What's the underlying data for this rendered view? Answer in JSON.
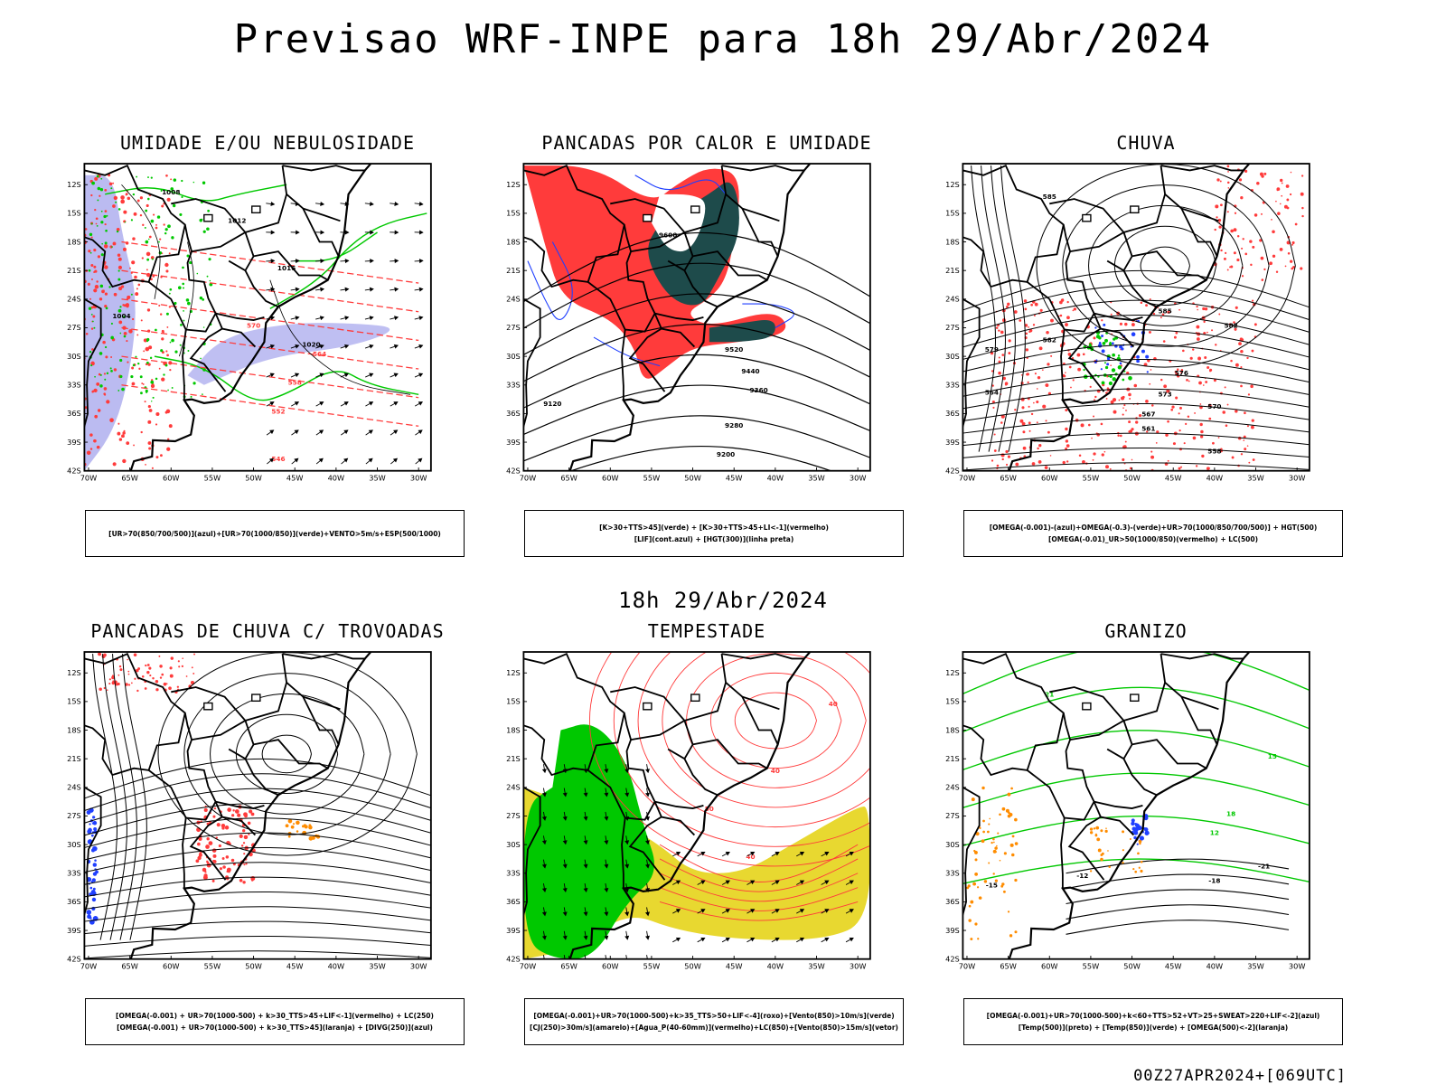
{
  "title": "Previsao WRF-INPE  para 18h 29/Abr/2024",
  "middle_title": "18h 29/Abr/2024",
  "footer": "00Z27APR2024+[069UTC]",
  "axes": {
    "lat_labels": [
      "12S",
      "15S",
      "18S",
      "21S",
      "24S",
      "27S",
      "30S",
      "33S",
      "36S",
      "39S",
      "42S"
    ],
    "lon_labels": [
      "70W",
      "65W",
      "60W",
      "55W",
      "50W",
      "45W",
      "40W",
      "35W",
      "30W"
    ]
  },
  "colors": {
    "red": "#ff3b3b",
    "green": "#00c800",
    "blue": "#1f3fff",
    "lavender": "#b4b4f0",
    "darkteal": "#1e4b4b",
    "yellow": "#e8d830",
    "orange": "#ff8c00",
    "black": "#000000"
  },
  "panels": [
    {
      "title": "UMIDADE E/OU NEBULOSIDADE",
      "legend_lines": [
        "[UR>70(850/700/500)](azul)+[UR>70(1000/850)](verde)+VENTO>5m/s+ESP(500/1000)"
      ],
      "contour_labels": [
        "1008",
        "1012",
        "1016",
        "1004",
        "1020",
        "570",
        "564",
        "558",
        "552",
        "546"
      ]
    },
    {
      "title": "PANCADAS POR CALOR E UMIDADE",
      "legend_lines": [
        "[K>30+TTS>45](verde) + [K>30+TTS>45+LI<-1](vermelho)",
        "[LIF](cont.azul) + [HGT(300)](linha preta)"
      ],
      "contour_labels": [
        "9600",
        "9520",
        "9440",
        "9360",
        "9280",
        "9200",
        "9120"
      ]
    },
    {
      "title": "CHUVA",
      "legend_lines": [
        "[OMEGA(-0.001)-(azul)+OMEGA(-0.3)-(verde)+UR>70(1000/850/700/500)] + HGT(500)",
        "[OMEGA(-0.01)_UR>50(1000/850)(vermelho) + LC(500)"
      ],
      "contour_labels": [
        "585",
        "582",
        "579",
        "576",
        "573",
        "570",
        "567",
        "564",
        "561",
        "558"
      ]
    },
    {
      "title": "PANCADAS DE CHUVA C/ TROVOADAS",
      "legend_lines": [
        "[OMEGA(-0.001) + UR>70(1000-500) + k>30_TTS>45+LIF<-1](vermelho) + LC(250)",
        "[OMEGA(-0.001) + UR>70(1000-500) + k>30_TTS>45](laranja) + [DIVG(250)](azul)"
      ],
      "contour_labels": []
    },
    {
      "title": "TEMPESTADE",
      "legend_lines": [
        "[OMEGA(-0.001)+UR>70(1000-500)+k>35_TTS>50+LIF<-4](roxo)+[Vento(850)>10m/s](verde)",
        "[CJ(250)>30m/s](amarelo)+[Agua_P(40-60mm)](vermelho)+LC(850)+[Vento(850)>15m/s](vetor)"
      ],
      "contour_labels": [
        "40",
        "50"
      ]
    },
    {
      "title": "GRANIZO",
      "legend_lines": [
        "[OMEGA(-0.001)+UR>70(1000-500)+k<60+TTS>52+VT>25+SWEAT>220+LIF<-2](azul)",
        "[Temp(500)](preto) + [Temp(850)](verde) + [OMEGA(500)<-2](laranja)"
      ],
      "contour_labels": [
        "-12",
        "-15",
        "-18",
        "-21",
        "12",
        "15",
        "18",
        "21"
      ]
    }
  ]
}
